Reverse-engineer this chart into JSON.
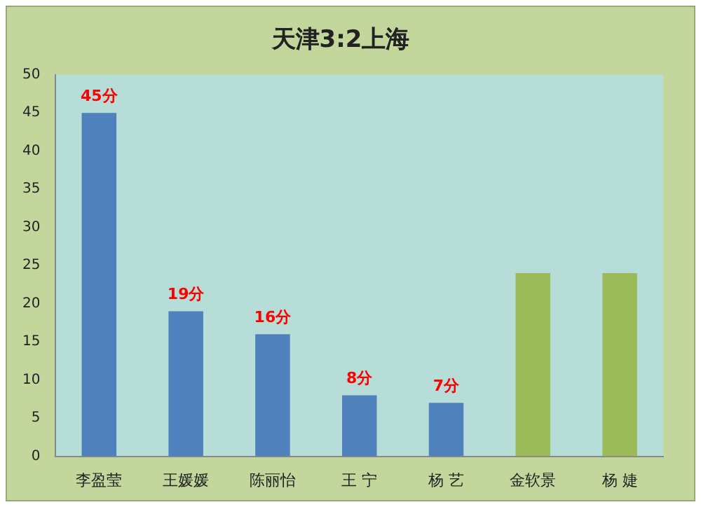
{
  "chart_data": {
    "type": "bar",
    "title": "天津3:2上海",
    "categories": [
      "李盈莹",
      "王媛媛",
      "陈丽怡",
      "王 宁",
      "杨 艺",
      "金软景",
      "杨 婕"
    ],
    "values": [
      45,
      19,
      16,
      8,
      7,
      24,
      24
    ],
    "colors": [
      "#4f81bd",
      "#4f81bd",
      "#4f81bd",
      "#4f81bd",
      "#4f81bd",
      "#9bbb59",
      "#9bbb59"
    ],
    "value_labels": [
      "45分",
      "19分",
      "16分",
      "8分",
      "7分",
      null,
      null
    ],
    "ylim": [
      0,
      50
    ],
    "yticks": [
      0,
      5,
      10,
      15,
      20,
      25,
      30,
      35,
      40,
      45,
      50
    ],
    "grid": false,
    "legend": false
  }
}
